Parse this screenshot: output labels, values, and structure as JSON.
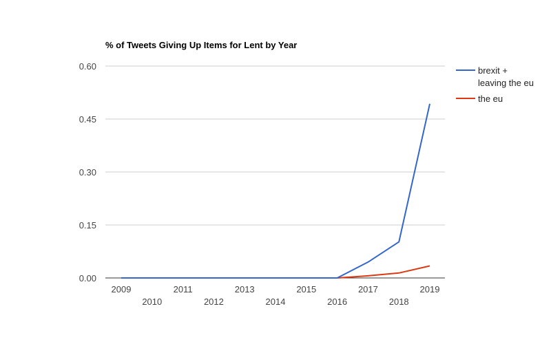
{
  "chart_data": {
    "type": "line",
    "title": "% of Tweets Giving Up Items for Lent by Year",
    "xlabel": "",
    "ylabel": "",
    "x": [
      "2009",
      "2010",
      "2011",
      "2012",
      "2013",
      "2014",
      "2015",
      "2016",
      "2017",
      "2018",
      "2019"
    ],
    "ylim": [
      0,
      0.6
    ],
    "yticks": [
      "0.00",
      "0.15",
      "0.30",
      "0.45",
      "0.60"
    ],
    "grid": true,
    "legend_position": "right",
    "series": [
      {
        "name_lines": [
          "brexit +",
          "leaving the eu"
        ],
        "color": "#3366cc",
        "values": [
          0,
          0,
          0,
          0,
          0,
          0,
          0,
          0,
          0.045,
          0.102,
          0.493
        ]
      },
      {
        "name_lines": [
          "the eu"
        ],
        "color": "#dc3912",
        "values": [
          0,
          0,
          0,
          0,
          0,
          0,
          0,
          0,
          0.006,
          0.014,
          0.034
        ]
      }
    ]
  }
}
